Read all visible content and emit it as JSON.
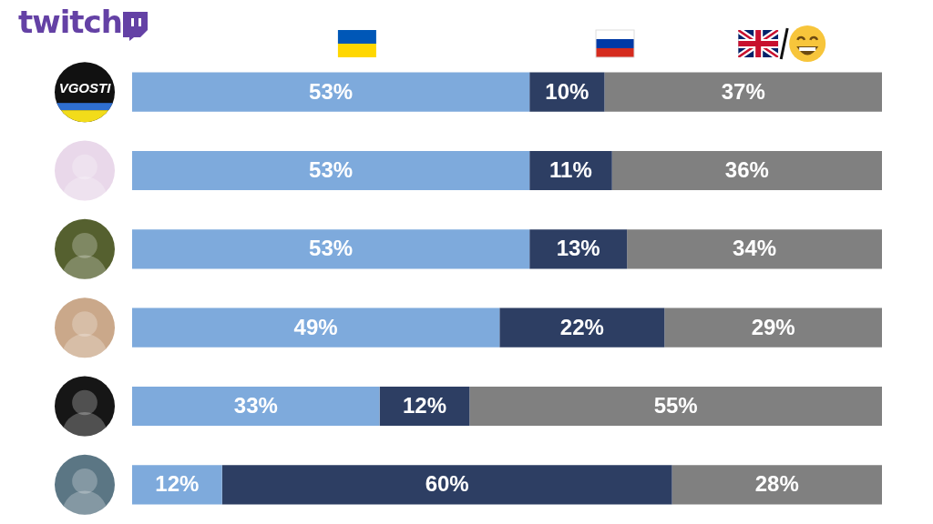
{
  "chart_data": {
    "type": "bar",
    "title": "twitch",
    "orientation": "horizontal",
    "stacked": true,
    "grid": false,
    "data_labels": true,
    "tick_labels": "y",
    "categories": [
      "VGOSTI",
      null,
      null,
      null,
      null,
      null
    ],
    "xlim": [
      0,
      100
    ],
    "series": [
      {
        "color": "#7eaadc",
        "values": [
          53,
          53,
          53,
          49,
          33,
          12
        ],
        "value_labels": [
          "53%",
          "53%",
          "53%",
          "49%",
          "33%",
          "12%"
        ]
      },
      {
        "color": "#2d3e63",
        "values": [
          10,
          11,
          13,
          22,
          12,
          60
        ],
        "value_labels": [
          "10%",
          "11%",
          "13%",
          "22%",
          "12%",
          "60%"
        ]
      },
      {
        "color": "#808080",
        "values": [
          37,
          36,
          34,
          29,
          55,
          28
        ],
        "value_labels": [
          "37%",
          "36%",
          "34%",
          "29%",
          "55%",
          "28%"
        ]
      }
    ]
  }
}
